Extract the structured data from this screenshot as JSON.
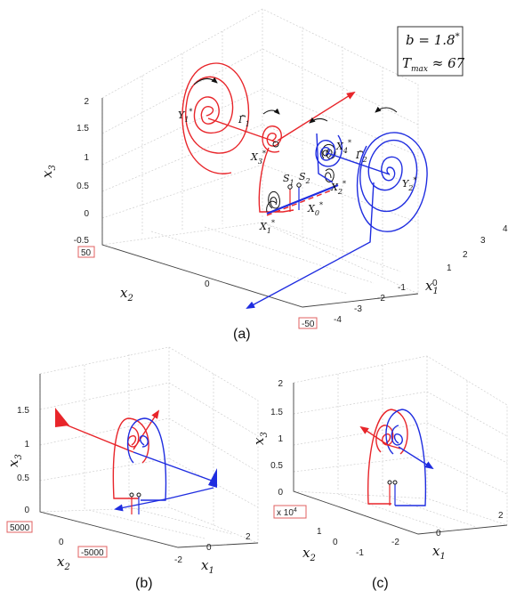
{
  "panel_a": {
    "caption": "(a)",
    "x3_label": "x",
    "x3_sub": "3",
    "x2_label": "x",
    "x2_sub": "2",
    "x1_label": "x",
    "x1_sub": "1",
    "x3_ticks": [
      "2",
      "1.5",
      "1",
      "0.5",
      "0",
      "-0.5"
    ],
    "x1_ticks": [
      "4",
      "3",
      "2",
      "1",
      "0",
      "-1",
      "-2",
      "-3",
      "-4"
    ],
    "x2_tick_mid": "0",
    "boxed_left": "50",
    "boxed_right": "-50",
    "param_box": {
      "line1": "b = 1.8",
      "line1_sup": "*",
      "line2_pre": "T",
      "line2_sub": "max",
      "line2_post": " ≈ 67"
    },
    "labels": {
      "Y1": "Y",
      "Y1_sub": "1",
      "Y1_sup": "*",
      "G1": "Γ̃",
      "G1_sub": "1",
      "X3": "X",
      "X3_sub": "3",
      "X3_sup": "*",
      "X4": "X",
      "X4_sub": "4",
      "X4_sup": "*",
      "G2": "Γ̃",
      "G2_sub": "2",
      "Y2": "Y",
      "Y2_sub": "2",
      "Y2_sup": "*",
      "S1": "S",
      "S1_sub": "1",
      "S2": "S",
      "S2_sub": "2",
      "X2": "X",
      "X2_sub": "2",
      "X2_sup": "*",
      "X1": "X",
      "X1_sub": "1",
      "X1_sup": "*",
      "X0": "X",
      "X0_sub": "0",
      "X0_sup": "*"
    }
  },
  "panel_b": {
    "caption": "(b)",
    "x3_ticks": [
      "1.5",
      "1",
      "0.5",
      "0"
    ],
    "x2_ticks": [
      "0"
    ],
    "x1_ticks": [
      "2",
      "0",
      "-2"
    ],
    "boxed_left": "5000",
    "boxed_right": "-5000",
    "x3_label": "x",
    "x3_sub": "3",
    "x2_label": "x",
    "x2_sub": "2",
    "x1_label": "x",
    "x1_sub": "1"
  },
  "panel_c": {
    "caption": "(c)",
    "x3_ticks": [
      "2",
      "1.5",
      "1",
      "0.5",
      "0"
    ],
    "x2_ticks": [
      "0",
      "1"
    ],
    "x1_ticks": [
      "2",
      "0",
      "-2"
    ],
    "x2_tick_neg": "-1",
    "boxed_scale": "x 10",
    "boxed_scale_sup": "4",
    "x3_label": "x",
    "x3_sub": "3",
    "x2_label": "x",
    "x2_sub": "2",
    "x1_label": "x",
    "x1_sub": "1"
  },
  "colors": {
    "red": "#e8252a",
    "blue": "#1f2de0",
    "black": "#111111",
    "grid": "#cfcfcf"
  }
}
